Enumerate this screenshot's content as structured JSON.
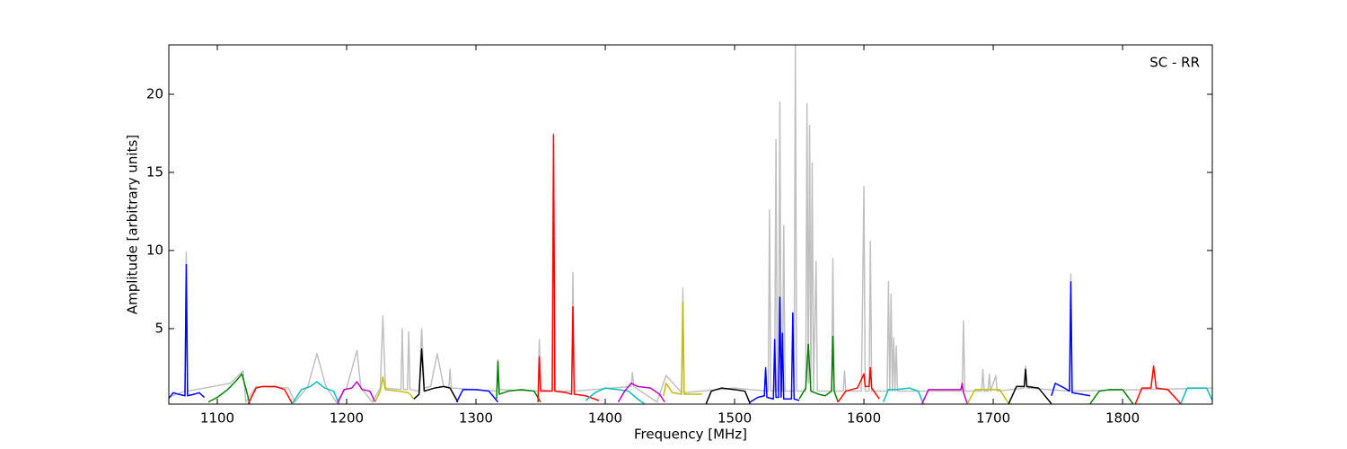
{
  "chart_data": {
    "type": "line",
    "annotation": "SC - RR",
    "xlabel": "Frequency [MHz]",
    "ylabel": "Amplitude [arbitrary units]",
    "xlim": [
      1062.5,
      1869.4
    ],
    "ylim": [
      0.17,
      23.16
    ],
    "xticks": [
      1100,
      1200,
      1300,
      1400,
      1500,
      1600,
      1700,
      1800
    ],
    "yticks": [
      5,
      10,
      15,
      20
    ],
    "series": [
      {
        "color": "#c0c0c0",
        "x": [
          1062,
          1075,
          1076,
          1077,
          1110,
          1120,
          1122,
          1130,
          1155,
          1160,
          1170,
          1177,
          1184,
          1192,
          1200,
          1208,
          1211,
          1220,
          1226,
          1228,
          1230,
          1242,
          1243,
          1244,
          1247,
          1248,
          1249,
          1256,
          1258,
          1260,
          1265,
          1270,
          1275,
          1279,
          1280,
          1281,
          1300,
          1316,
          1317,
          1318,
          1348,
          1349,
          1350,
          1359,
          1360,
          1361,
          1374,
          1375,
          1376,
          1420,
          1421,
          1422,
          1440,
          1447,
          1459,
          1460,
          1461,
          1500,
          1526,
          1527,
          1528,
          1531,
          1532,
          1533,
          1534,
          1535,
          1536,
          1537,
          1538,
          1539,
          1546,
          1547,
          1548,
          1555,
          1556,
          1557,
          1558,
          1559,
          1560,
          1561,
          1563,
          1564,
          1575,
          1576,
          1577,
          1584,
          1585,
          1586,
          1598,
          1599,
          1600,
          1601,
          1604,
          1605,
          1606,
          1618,
          1619,
          1620,
          1621,
          1622,
          1623,
          1624,
          1625,
          1626,
          1676,
          1677,
          1678,
          1691,
          1692,
          1693,
          1696,
          1697,
          1698,
          1702,
          1703,
          1724,
          1725,
          1726,
          1759,
          1760,
          1761,
          1870
        ],
        "values": [
          0.6,
          1.0,
          9.9,
          1.0,
          1.5,
          2.3,
          0.3,
          1.3,
          1.2,
          0.3,
          1.3,
          3.4,
          1.3,
          0.3,
          1.2,
          3.6,
          1.2,
          0.3,
          1.2,
          5.8,
          1.2,
          1.1,
          5.0,
          1.1,
          1.1,
          4.8,
          1.1,
          1.0,
          5.0,
          1.2,
          1.3,
          3.4,
          1.3,
          1.2,
          2.4,
          1.2,
          1.1,
          1.0,
          3.0,
          1.1,
          1.0,
          4.3,
          1.1,
          1.0,
          17.5,
          1.0,
          1.0,
          8.6,
          1.0,
          1.3,
          2.2,
          1.3,
          0.3,
          2.0,
          0.9,
          7.6,
          0.9,
          1.2,
          1.0,
          12.6,
          1.0,
          1.0,
          17.1,
          1.0,
          1.0,
          19.5,
          1.0,
          1.0,
          11.6,
          1.0,
          1.0,
          23.2,
          1.0,
          1.0,
          19.4,
          1.5,
          18.0,
          1.5,
          15.6,
          1.0,
          9.3,
          1.0,
          1.0,
          9.5,
          1.0,
          1.0,
          2.3,
          1.0,
          1.0,
          7.0,
          14.1,
          1.0,
          1.0,
          10.6,
          1.0,
          1.0,
          8.0,
          1.0,
          7.2,
          1.0,
          4.4,
          1.0,
          3.9,
          1.0,
          1.0,
          5.5,
          1.0,
          1.0,
          2.4,
          1.0,
          1.0,
          2.1,
          1.0,
          2.0,
          1.0,
          1.2,
          2.6,
          1.2,
          1.0,
          8.5,
          1.0,
          1.2
        ]
      },
      {
        "color": "#0000ff",
        "x": [
          1062,
          1066,
          1070,
          1075,
          1076,
          1077,
          1082,
          1086,
          1090
        ],
        "values": [
          0.5,
          0.9,
          0.8,
          0.7,
          9.1,
          0.7,
          0.8,
          0.9,
          0.6
        ]
      },
      {
        "color": "#008000",
        "x": [
          1093,
          1100,
          1108,
          1115,
          1119,
          1122,
          1125
        ],
        "values": [
          0.3,
          0.6,
          1.1,
          1.7,
          2.1,
          1.2,
          0.2
        ]
      },
      {
        "color": "#ff0000",
        "x": [
          1124,
          1130,
          1135,
          1145,
          1152,
          1158
        ],
        "values": [
          0.2,
          1.2,
          1.3,
          1.3,
          1.1,
          0.2
        ]
      },
      {
        "color": "#00bfbf",
        "x": [
          1158,
          1165,
          1172,
          1177,
          1183,
          1190,
          1194
        ],
        "values": [
          0.2,
          1.1,
          1.3,
          1.6,
          1.2,
          1.0,
          0.2
        ]
      },
      {
        "color": "#bf00bf",
        "x": [
          1193,
          1198,
          1204,
          1208,
          1212,
          1218,
          1222
        ],
        "values": [
          0.2,
          1.1,
          1.2,
          1.6,
          1.1,
          1.0,
          0.3
        ]
      },
      {
        "color": "#bfbf00",
        "x": [
          1222,
          1226,
          1228,
          1230,
          1240,
          1248,
          1252
        ],
        "values": [
          0.3,
          1.0,
          1.9,
          1.1,
          1.0,
          0.9,
          0.5
        ]
      },
      {
        "color": "#000000",
        "x": [
          1252,
          1256,
          1258,
          1260,
          1268,
          1275,
          1280,
          1286
        ],
        "values": [
          0.5,
          0.8,
          3.7,
          1.0,
          1.2,
          1.3,
          1.2,
          0.3
        ]
      },
      {
        "color": "#0000ff",
        "x": [
          1285,
          1290,
          1300,
          1310,
          1317
        ],
        "values": [
          0.3,
          1.1,
          1.1,
          1.0,
          0.3
        ]
      },
      {
        "color": "#008000",
        "x": [
          1316,
          1317,
          1318,
          1325,
          1335,
          1345,
          1350
        ],
        "values": [
          0.5,
          2.9,
          0.8,
          1.0,
          1.1,
          1.0,
          0.3
        ]
      },
      {
        "color": "#ff0000",
        "x": [
          1348,
          1349,
          1350,
          1355,
          1359,
          1360,
          1361,
          1370,
          1374,
          1375,
          1376,
          1385,
          1395
        ],
        "values": [
          0.3,
          3.2,
          1.0,
          1.0,
          1.0,
          17.4,
          1.0,
          0.9,
          0.8,
          6.4,
          0.8,
          0.7,
          0.4
        ]
      },
      {
        "color": "#00bfbf",
        "x": [
          1385,
          1392,
          1400,
          1410,
          1418,
          1425,
          1430
        ],
        "values": [
          0.4,
          0.9,
          1.2,
          1.1,
          1.0,
          0.5,
          0.2
        ]
      },
      {
        "color": "#bf00bf",
        "x": [
          1410,
          1415,
          1420,
          1425,
          1435,
          1442,
          1446
        ],
        "values": [
          0.3,
          1.0,
          1.5,
          1.3,
          1.2,
          0.8,
          0.3
        ]
      },
      {
        "color": "#bfbf00",
        "x": [
          1445,
          1447,
          1452,
          1459,
          1460,
          1461,
          1468,
          1475
        ],
        "values": [
          0.7,
          1.5,
          0.9,
          0.8,
          6.7,
          0.8,
          0.8,
          0.8
        ]
      },
      {
        "color": "#000000",
        "x": [
          1478,
          1482,
          1490,
          1500,
          1508,
          1512
        ],
        "values": [
          0.2,
          1.0,
          1.2,
          1.1,
          1.0,
          0.2
        ]
      },
      {
        "color": "#0000ff",
        "x": [
          1512,
          1518,
          1523,
          1524,
          1525,
          1530,
          1531,
          1532,
          1534,
          1535,
          1536,
          1537,
          1538,
          1544,
          1545,
          1546,
          1550
        ],
        "values": [
          0.3,
          0.6,
          0.7,
          2.5,
          0.6,
          0.5,
          4.3,
          0.6,
          0.6,
          7.0,
          0.6,
          4.7,
          0.5,
          0.5,
          6.0,
          0.5,
          0.4
        ]
      },
      {
        "color": "#008000",
        "x": [
          1550,
          1555,
          1557,
          1559,
          1565,
          1570,
          1575,
          1576,
          1577,
          1580
        ],
        "values": [
          0.5,
          1.2,
          4.0,
          1.0,
          0.8,
          0.7,
          1.0,
          4.5,
          1.0,
          0.3
        ]
      },
      {
        "color": "#ff0000",
        "x": [
          1580,
          1586,
          1595,
          1600,
          1601,
          1604,
          1605,
          1606,
          1612
        ],
        "values": [
          0.3,
          1.0,
          1.2,
          2.1,
          1.3,
          1.3,
          2.5,
          1.2,
          0.5
        ]
      },
      {
        "color": "#00bfbf",
        "x": [
          1615,
          1619,
          1625,
          1635,
          1642,
          1646
        ],
        "values": [
          0.3,
          1.1,
          1.1,
          1.2,
          1.0,
          0.2
        ]
      },
      {
        "color": "#bf00bf",
        "x": [
          1645,
          1650,
          1660,
          1670,
          1675,
          1676,
          1677,
          1680
        ],
        "values": [
          0.2,
          1.1,
          1.1,
          1.1,
          1.1,
          1.5,
          0.9,
          0.2
        ]
      },
      {
        "color": "#bfbf00",
        "x": [
          1680,
          1686,
          1695,
          1705,
          1712
        ],
        "values": [
          0.2,
          1.1,
          1.1,
          1.1,
          0.2
        ]
      },
      {
        "color": "#000000",
        "x": [
          1712,
          1718,
          1724,
          1725,
          1726,
          1735,
          1745
        ],
        "values": [
          0.2,
          1.3,
          1.3,
          2.4,
          1.3,
          1.2,
          0.2
        ]
      },
      {
        "color": "#0000ff",
        "x": [
          1745,
          1748,
          1755,
          1759,
          1760,
          1761,
          1768,
          1775
        ],
        "values": [
          0.7,
          1.5,
          1.2,
          1.0,
          8.0,
          0.9,
          0.8,
          0.7
        ]
      },
      {
        "color": "#008000",
        "x": [
          1775,
          1782,
          1790,
          1800,
          1808
        ],
        "values": [
          0.2,
          1.0,
          1.1,
          1.1,
          0.2
        ]
      },
      {
        "color": "#ff0000",
        "x": [
          1810,
          1815,
          1822,
          1824,
          1826,
          1835,
          1845
        ],
        "values": [
          0.2,
          1.2,
          1.2,
          2.6,
          1.2,
          1.1,
          0.2
        ]
      },
      {
        "color": "#00bfbf",
        "x": [
          1845,
          1850,
          1858,
          1865,
          1870
        ],
        "values": [
          0.2,
          1.2,
          1.2,
          1.2,
          0.3
        ]
      }
    ]
  }
}
